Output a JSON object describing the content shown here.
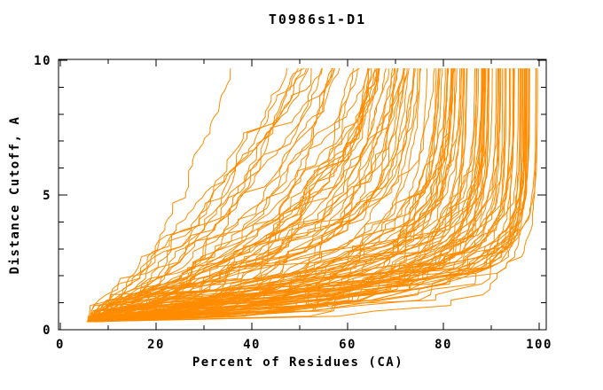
{
  "chart_data": {
    "type": "line",
    "title": "T0986s1-D1",
    "xlabel": "Percent of Residues (CA)",
    "ylabel": "Distance Cutoff, A",
    "xlim": [
      0,
      100
    ],
    "ylim": [
      0,
      10
    ],
    "x_major_ticks": [
      0,
      20,
      40,
      60,
      80,
      100
    ],
    "x_minor_ticks": [
      10,
      30,
      50,
      70,
      90
    ],
    "y_major_ticks": [
      0,
      5,
      10
    ],
    "y_minor_ticks": [
      1,
      2,
      3,
      4,
      6,
      7,
      8,
      9
    ],
    "grid": false,
    "legend": "none",
    "line_color": "#ff8c00",
    "axis_color": "#000000",
    "background_color": "#ffffff",
    "series_description": "Bundle of ~130 overlapping model-accuracy curves (one per predicted model), each monotonically increasing: percent of CA residues under a distance cutoff vs cutoff in Angstroms. All start near (6, 0.3); tops reached at y≈9.7 with x spread from ~32 (worst model) to 100 (best models).",
    "lower_envelope_points": [
      [
        6,
        0.3
      ],
      [
        15,
        0.4
      ],
      [
        25,
        0.5
      ],
      [
        40,
        0.8
      ],
      [
        60,
        1.2
      ],
      [
        80,
        1.7
      ],
      [
        90,
        2.1
      ],
      [
        97,
        2.8
      ],
      [
        100,
        9.7
      ]
    ],
    "upper_envelope_points": [
      [
        6,
        0.3
      ],
      [
        10,
        1.6
      ],
      [
        15,
        3.2
      ],
      [
        20,
        4.9
      ],
      [
        25,
        6.6
      ],
      [
        30,
        8.5
      ],
      [
        32,
        9.7
      ]
    ],
    "curves_spec": {
      "count": 130,
      "seed": 20986,
      "x_start_min": 5.5,
      "x_start_max": 8.5,
      "y_start": 0.3,
      "y_end": 9.7,
      "y_step": 0.2,
      "x_end_min": 32,
      "x_end_max": 100
    }
  }
}
